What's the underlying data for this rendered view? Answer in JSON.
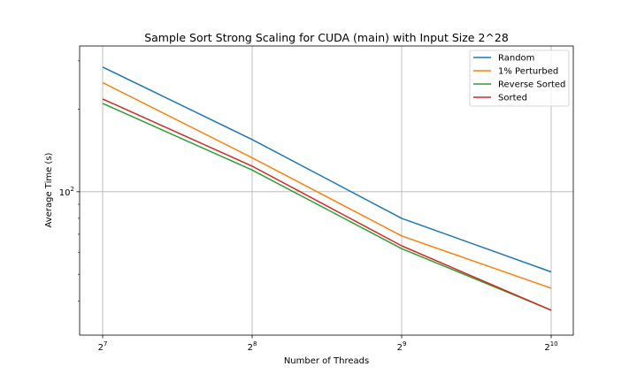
{
  "chart_data": {
    "type": "line",
    "title": "Sample Sort Strong Scaling for CUDA (main) with Input Size 2^28",
    "xlabel": "Number of Threads",
    "ylabel": "Average Time (s)",
    "x": [
      128,
      256,
      512,
      1024
    ],
    "x_scale": "log2",
    "x_ticks": [
      {
        "base": "2",
        "exp": "7"
      },
      {
        "base": "2",
        "exp": "8"
      },
      {
        "base": "2",
        "exp": "9"
      },
      {
        "base": "2",
        "exp": "10"
      }
    ],
    "y_scale": "log10",
    "ylim": [
      30,
      340
    ],
    "y_major_ticks": [
      {
        "value": 100,
        "base": "10",
        "exp": "2"
      }
    ],
    "y_minor_ticks": [
      40,
      50,
      60,
      70,
      80,
      90,
      200,
      300
    ],
    "grid": true,
    "legend_position": "top-right",
    "series": [
      {
        "name": "Random",
        "color": "#1f77b4",
        "values": [
          285,
          155,
          80,
          51
        ]
      },
      {
        "name": "1% Perturbed",
        "color": "#ff7f0e",
        "values": [
          250,
          133,
          69,
          44.5
        ]
      },
      {
        "name": "Reverse Sorted",
        "color": "#2ca02c",
        "values": [
          210,
          120,
          62,
          37
        ]
      },
      {
        "name": "Sorted",
        "color": "#d62728",
        "values": [
          218,
          124,
          63.5,
          37
        ]
      }
    ]
  }
}
